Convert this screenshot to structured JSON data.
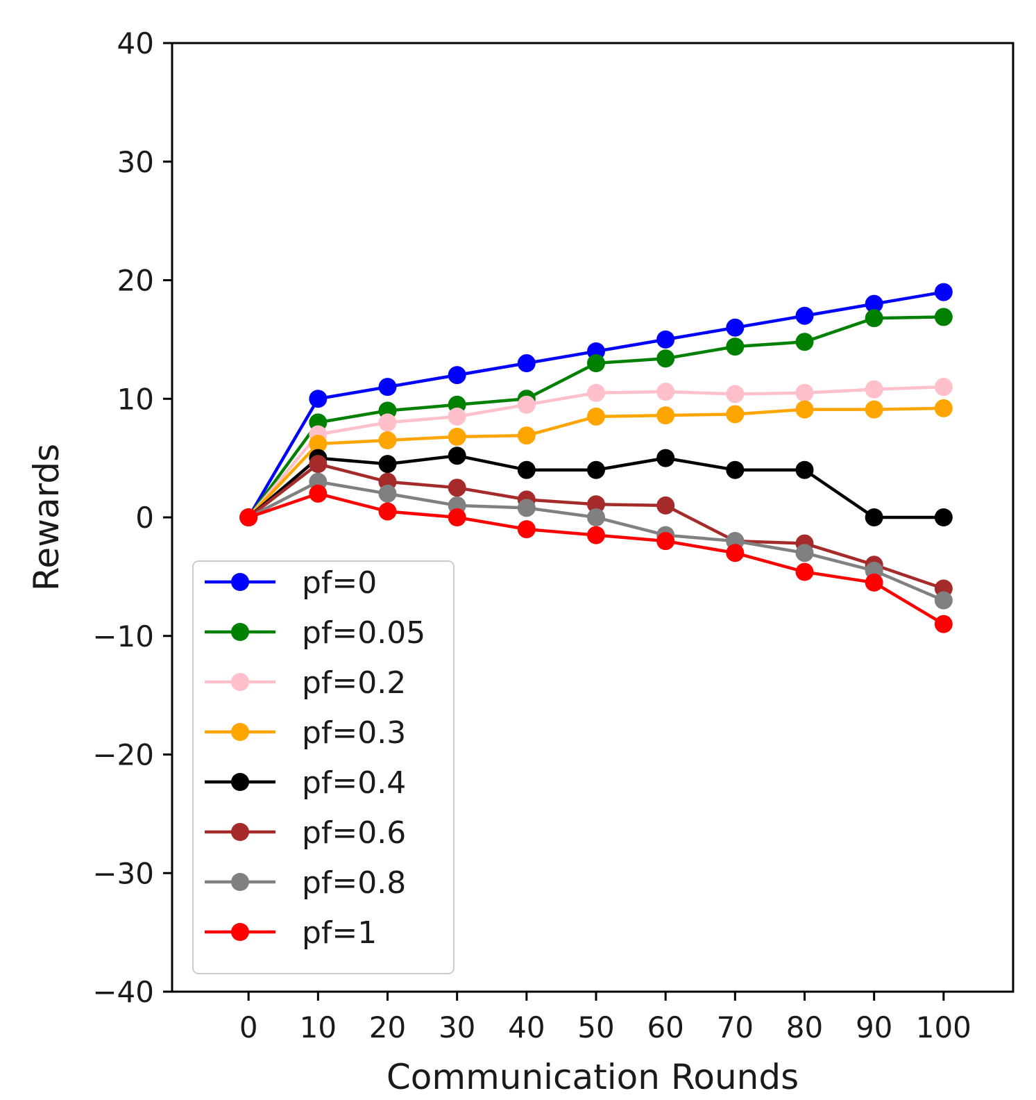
{
  "chart_data": {
    "type": "line",
    "xlabel": "Communication Rounds",
    "ylabel": "Rewards",
    "x": [
      0,
      10,
      20,
      30,
      40,
      50,
      60,
      70,
      80,
      90,
      100
    ],
    "xticks": [
      0,
      10,
      20,
      30,
      40,
      50,
      60,
      70,
      80,
      90,
      100
    ],
    "yticks": [
      -40,
      -30,
      -20,
      -10,
      0,
      10,
      20,
      30,
      40
    ],
    "xlim": [
      -11,
      110
    ],
    "ylim": [
      -40,
      40
    ],
    "grid": false,
    "legend_position": "lower-left",
    "series": [
      {
        "name": "pf=0",
        "color": "#0000ff",
        "values": [
          0,
          10,
          11,
          12,
          13,
          14,
          15,
          16,
          17,
          18,
          19
        ]
      },
      {
        "name": "pf=0.05",
        "color": "#008000",
        "values": [
          0,
          8,
          9,
          9.5,
          10,
          13,
          13.4,
          14.4,
          14.8,
          16.8,
          16.9
        ]
      },
      {
        "name": "pf=0.2",
        "color": "#ffc0cb",
        "values": [
          0,
          7,
          8,
          8.5,
          9.5,
          10.5,
          10.6,
          10.4,
          10.5,
          10.8,
          11
        ]
      },
      {
        "name": "pf=0.3",
        "color": "#ffa500",
        "values": [
          0,
          6.2,
          6.5,
          6.8,
          6.9,
          8.5,
          8.6,
          8.7,
          9.1,
          9.1,
          9.2
        ]
      },
      {
        "name": "pf=0.4",
        "color": "#000000",
        "values": [
          0,
          5,
          4.5,
          5.2,
          4,
          4,
          5,
          4,
          4,
          0,
          0
        ]
      },
      {
        "name": "pf=0.6",
        "color": "#a52a2a",
        "values": [
          0,
          4.5,
          3,
          2.5,
          1.5,
          1.1,
          1,
          -2,
          -2.2,
          -4,
          -6
        ]
      },
      {
        "name": "pf=0.8",
        "color": "#808080",
        "values": [
          0,
          3,
          2,
          1,
          0.8,
          0,
          -1.5,
          -2,
          -3,
          -4.5,
          -7
        ]
      },
      {
        "name": "pf=1",
        "color": "#ff0000",
        "values": [
          0,
          2,
          0.5,
          0,
          -1,
          -1.5,
          -2,
          -3,
          -4.6,
          -5.5,
          -9
        ]
      }
    ]
  }
}
